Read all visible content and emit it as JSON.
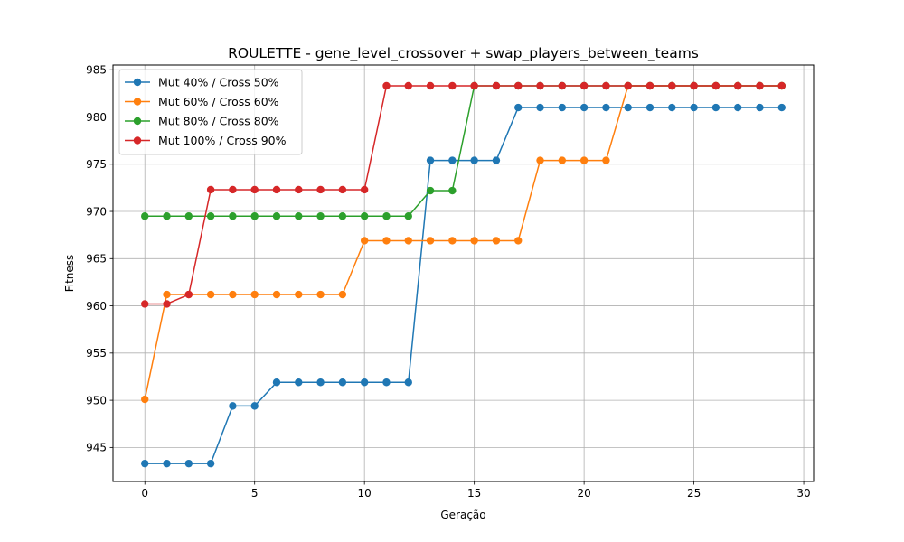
{
  "chart_data": {
    "type": "line",
    "title": "ROULETTE - gene_level_crossover + swap_players_between_teams",
    "xlabel": "Geração",
    "ylabel": "Fitness",
    "xlim": [
      -1.45,
      30.45
    ],
    "ylim": [
      941.4,
      985.5
    ],
    "xticks": [
      0,
      5,
      10,
      15,
      20,
      25,
      30
    ],
    "yticks": [
      945,
      950,
      955,
      960,
      965,
      970,
      975,
      980,
      985
    ],
    "grid": true,
    "legend_position": "upper-left",
    "series": [
      {
        "name": "Mut 40% / Cross 50%",
        "color": "#1f77b4",
        "x": [
          0,
          1,
          2,
          3,
          4,
          5,
          6,
          7,
          8,
          9,
          10,
          11,
          12,
          13,
          14,
          15,
          16,
          17,
          18,
          19,
          20,
          21,
          22,
          23,
          24,
          25,
          26,
          27,
          28,
          29
        ],
        "values": [
          943.3,
          943.3,
          943.3,
          943.3,
          949.4,
          949.4,
          951.9,
          951.9,
          951.9,
          951.9,
          951.9,
          951.9,
          951.9,
          975.4,
          975.4,
          975.4,
          975.4,
          981.0,
          981.0,
          981.0,
          981.0,
          981.0,
          981.0,
          981.0,
          981.0,
          981.0,
          981.0,
          981.0,
          981.0,
          981.0
        ]
      },
      {
        "name": "Mut 60% / Cross 60%",
        "color": "#ff7f0e",
        "x": [
          0,
          1,
          2,
          3,
          4,
          5,
          6,
          7,
          8,
          9,
          10,
          11,
          12,
          13,
          14,
          15,
          16,
          17,
          18,
          19,
          20,
          21,
          22,
          23,
          24,
          25,
          26,
          27,
          28,
          29
        ],
        "values": [
          950.1,
          961.2,
          961.2,
          961.2,
          961.2,
          961.2,
          961.2,
          961.2,
          961.2,
          961.2,
          966.9,
          966.9,
          966.9,
          966.9,
          966.9,
          966.9,
          966.9,
          966.9,
          975.4,
          975.4,
          975.4,
          975.4,
          983.3,
          983.3,
          983.3,
          983.3,
          983.3,
          983.3,
          983.3,
          983.3
        ]
      },
      {
        "name": "Mut 80% / Cross 80%",
        "color": "#2ca02c",
        "x": [
          0,
          1,
          2,
          3,
          4,
          5,
          6,
          7,
          8,
          9,
          10,
          11,
          12,
          13,
          14,
          15,
          16,
          17,
          18,
          19,
          20,
          21,
          22,
          23,
          24,
          25,
          26,
          27,
          28,
          29
        ],
        "values": [
          969.5,
          969.5,
          969.5,
          969.5,
          969.5,
          969.5,
          969.5,
          969.5,
          969.5,
          969.5,
          969.5,
          969.5,
          969.5,
          972.2,
          972.2,
          983.3,
          983.3,
          983.3,
          983.3,
          983.3,
          983.3,
          983.3,
          983.3,
          983.3,
          983.3,
          983.3,
          983.3,
          983.3,
          983.3,
          983.3
        ]
      },
      {
        "name": "Mut 100% / Cross 90%",
        "color": "#d62728",
        "x": [
          0,
          1,
          2,
          3,
          4,
          5,
          6,
          7,
          8,
          9,
          10,
          11,
          12,
          13,
          14,
          15,
          16,
          17,
          18,
          19,
          20,
          21,
          22,
          23,
          24,
          25,
          26,
          27,
          28,
          29
        ],
        "values": [
          960.2,
          960.2,
          961.2,
          972.3,
          972.3,
          972.3,
          972.3,
          972.3,
          972.3,
          972.3,
          972.3,
          983.3,
          983.3,
          983.3,
          983.3,
          983.3,
          983.3,
          983.3,
          983.3,
          983.3,
          983.3,
          983.3,
          983.3,
          983.3,
          983.3,
          983.3,
          983.3,
          983.3,
          983.3,
          983.3
        ]
      }
    ]
  }
}
